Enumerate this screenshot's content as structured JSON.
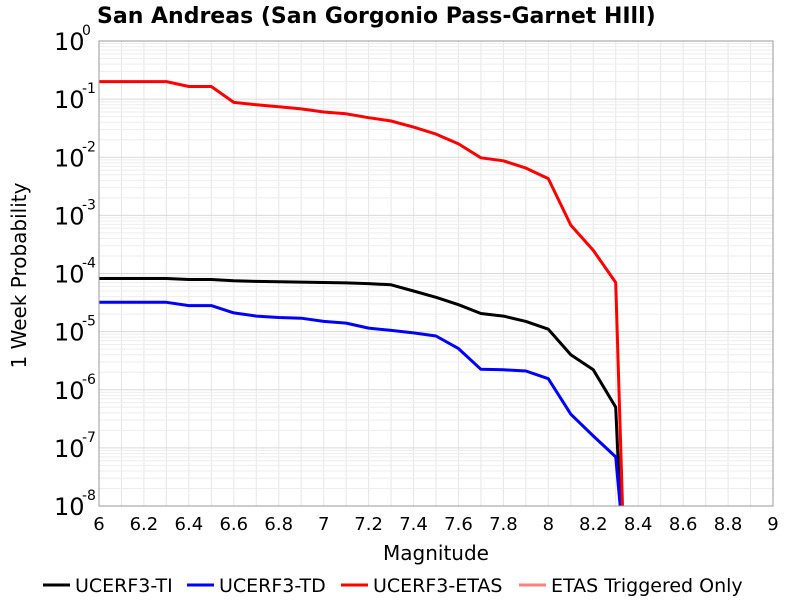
{
  "chart_data": {
    "type": "line",
    "title": "San Andreas (San Gorgonio Pass-Garnet HIll)",
    "xlabel": "Magnitude",
    "ylabel": "1 Week Probability",
    "xlim": [
      6,
      9
    ],
    "ylim": [
      1e-08,
      1
    ],
    "yscale": "log",
    "grid": true,
    "legend_position": "bottom",
    "x_ticks": [
      "6",
      "6.2",
      "6.4",
      "6.6",
      "6.8",
      "7",
      "7.2",
      "7.4",
      "7.6",
      "7.8",
      "8",
      "8.2",
      "8.4",
      "8.6",
      "8.8",
      "9"
    ],
    "y_ticks": [
      {
        "base": "10",
        "exp": "-8",
        "value": 1e-08
      },
      {
        "base": "10",
        "exp": "-7",
        "value": 1e-07
      },
      {
        "base": "10",
        "exp": "-6",
        "value": 1e-06
      },
      {
        "base": "10",
        "exp": "-5",
        "value": 1e-05
      },
      {
        "base": "10",
        "exp": "-4",
        "value": 0.0001
      },
      {
        "base": "10",
        "exp": "-3",
        "value": 0.001
      },
      {
        "base": "10",
        "exp": "-2",
        "value": 0.01
      },
      {
        "base": "10",
        "exp": "-1",
        "value": 0.1
      },
      {
        "base": "10",
        "exp": "0",
        "value": 1
      }
    ],
    "series": [
      {
        "name": "UCERF3-TI",
        "color": "#000000",
        "x": [
          6.0,
          6.1,
          6.2,
          6.3,
          6.4,
          6.5,
          6.6,
          6.7,
          6.8,
          6.9,
          7.0,
          7.1,
          7.2,
          7.3,
          7.4,
          7.5,
          7.6,
          7.7,
          7.8,
          7.9,
          8.0,
          8.1,
          8.2,
          8.3,
          8.32
        ],
        "y": [
          8.2e-05,
          8.2e-05,
          8.2e-05,
          8.2e-05,
          7.9e-05,
          7.9e-05,
          7.5e-05,
          7.3e-05,
          7.2e-05,
          7.1e-05,
          7e-05,
          6.9e-05,
          6.7e-05,
          6.4e-05,
          5e-05,
          3.9e-05,
          2.9e-05,
          2.05e-05,
          1.85e-05,
          1.5e-05,
          1.1e-05,
          4e-06,
          2.2e-06,
          5e-07,
          1e-08
        ]
      },
      {
        "name": "UCERF3-TD",
        "color": "#0000ff",
        "x": [
          6.0,
          6.1,
          6.2,
          6.3,
          6.4,
          6.5,
          6.6,
          6.7,
          6.8,
          6.9,
          7.0,
          7.1,
          7.2,
          7.3,
          7.4,
          7.5,
          7.6,
          7.7,
          7.8,
          7.9,
          8.0,
          8.1,
          8.2,
          8.3,
          8.32
        ],
        "y": [
          3.2e-05,
          3.2e-05,
          3.2e-05,
          3.2e-05,
          2.8e-05,
          2.8e-05,
          2.1e-05,
          1.85e-05,
          1.75e-05,
          1.7e-05,
          1.5e-05,
          1.4e-05,
          1.15e-05,
          1.05e-05,
          9.5e-06,
          8.4e-06,
          5.1e-06,
          2.25e-06,
          2.2e-06,
          2.1e-06,
          1.55e-06,
          3.8e-07,
          1.6e-07,
          7e-08,
          1e-08
        ]
      },
      {
        "name": "UCERF3-ETAS",
        "color": "#ff0000",
        "x": [
          6.0,
          6.1,
          6.2,
          6.3,
          6.4,
          6.5,
          6.6,
          6.7,
          6.8,
          6.9,
          7.0,
          7.1,
          7.2,
          7.3,
          7.4,
          7.5,
          7.6,
          7.7,
          7.8,
          7.9,
          8.0,
          8.1,
          8.2,
          8.3,
          8.33
        ],
        "y": [
          0.2,
          0.2,
          0.2,
          0.2,
          0.165,
          0.165,
          0.088,
          0.08,
          0.074,
          0.068,
          0.06,
          0.056,
          0.048,
          0.042,
          0.033,
          0.025,
          0.017,
          0.0098,
          0.0087,
          0.0065,
          0.0043,
          0.00068,
          0.00025,
          7e-05,
          1e-08
        ]
      },
      {
        "name": "ETAS Triggered Only",
        "color": "#ff8080",
        "x": [],
        "y": []
      }
    ]
  }
}
